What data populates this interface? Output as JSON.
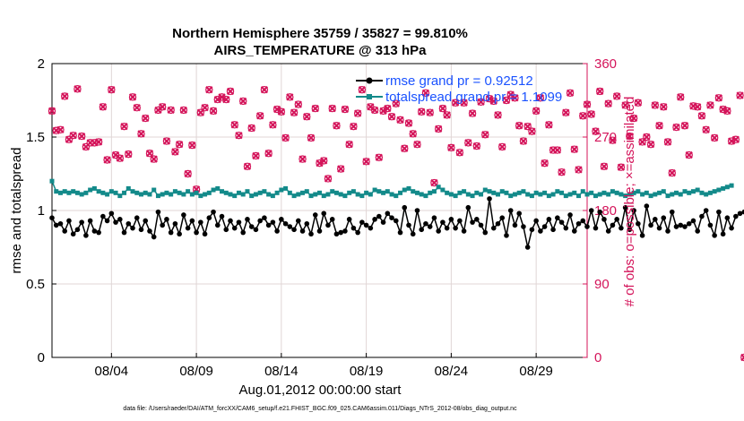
{
  "chart_data": {
    "type": "line",
    "title_line1": "Northern Hemisphere 35759 / 35827 = 99.810%",
    "title_line2": "AIRS_TEMPERATURE @ 313 hPa",
    "xlabel": "Aug.01,2012 00:00:00 start",
    "ylabel": "rmse and totalspread",
    "y2label": "# of obs: o=possible; ×=assimilated",
    "xlim": [
      0.5,
      32.0
    ],
    "ylim": [
      0,
      2
    ],
    "y2lim": [
      0,
      360
    ],
    "x_ticks": [
      4,
      9,
      14,
      19,
      24,
      29
    ],
    "x_tick_labels": [
      "08/04",
      "08/09",
      "08/14",
      "08/19",
      "08/24",
      "08/29"
    ],
    "y_ticks": [
      0,
      0.5,
      1,
      1.5,
      2
    ],
    "y_tick_labels": [
      "0",
      "0.5",
      "1",
      "1.5",
      "2"
    ],
    "y2_ticks": [
      0,
      90,
      180,
      270,
      360
    ],
    "y2_tick_labels": [
      "0",
      "90",
      "180",
      "270",
      "360"
    ],
    "grid": true,
    "legend_position": "top-right",
    "footnote": "data file: /Users/raeder/DAI/ATM_forcXX/CAM6_setup/f.e21.FHIST_BGC.f09_025.CAM6assim.011/Diags_NTrS_2012-08/obs_diag_output.nc",
    "colors": {
      "rmse": "#000000",
      "spread": "#138a8a",
      "obs": "#d4145a",
      "legend_text": "#1a52ff"
    },
    "x_start": 0.5,
    "x_step": 0.25,
    "series": [
      {
        "name": "rmse grand pr = 0.92512",
        "values": [
          0.95,
          0.9,
          0.91,
          0.86,
          0.93,
          0.84,
          0.87,
          0.92,
          0.83,
          0.93,
          0.86,
          0.85,
          0.96,
          0.93,
          0.98,
          0.92,
          0.94,
          0.85,
          0.91,
          0.88,
          0.95,
          0.87,
          0.93,
          0.86,
          0.82,
          0.99,
          0.9,
          0.94,
          0.85,
          0.91,
          0.84,
          0.97,
          0.88,
          0.93,
          0.85,
          0.92,
          0.84,
          0.95,
          0.99,
          0.9,
          0.96,
          0.87,
          0.93,
          0.88,
          0.92,
          0.85,
          0.94,
          0.89,
          0.87,
          0.93,
          0.95,
          0.9,
          0.92,
          0.86,
          0.94,
          0.91,
          0.89,
          0.87,
          0.93,
          0.86,
          0.91,
          0.84,
          0.97,
          0.86,
          0.98,
          0.9,
          0.94,
          0.84,
          0.85,
          0.86,
          0.94,
          0.88,
          0.85,
          0.92,
          0.9,
          0.88,
          0.94,
          0.96,
          0.92,
          0.98,
          0.95,
          0.93,
          0.85,
          1.02,
          0.9,
          0.84,
          1.0,
          0.87,
          0.91,
          0.89,
          0.95,
          0.86,
          0.92,
          0.88,
          0.94,
          0.88,
          0.93,
          0.86,
          1.02,
          0.92,
          0.94,
          0.9,
          0.85,
          1.08,
          0.88,
          0.91,
          0.95,
          0.83,
          1.0,
          0.9,
          0.98,
          0.89,
          0.75,
          0.87,
          0.93,
          0.86,
          0.89,
          0.94,
          0.87,
          0.95,
          0.92,
          0.88,
          0.97,
          0.86,
          0.91,
          0.93,
          0.89,
          1.0,
          0.88,
          0.99,
          0.94,
          0.86,
          0.9,
          0.94,
          0.88,
          1.02,
          0.87,
          1.0,
          0.91,
          0.83,
          1.03,
          0.9,
          0.94,
          0.88,
          0.95,
          0.86,
          0.99,
          0.89,
          0.9,
          0.89,
          0.91,
          0.93,
          0.86,
          0.96,
          1.0,
          0.9,
          0.83,
          0.99,
          0.84,
          0.95,
          0.88,
          0.96,
          0.98,
          0.99,
          1.0
        ]
      },
      {
        "name": "totalspread grand pr = 1.1099",
        "values": [
          1.2,
          1.13,
          1.12,
          1.13,
          1.12,
          1.13,
          1.12,
          1.11,
          1.12,
          1.14,
          1.15,
          1.13,
          1.12,
          1.11,
          1.13,
          1.12,
          1.1,
          1.12,
          1.15,
          1.13,
          1.12,
          1.11,
          1.12,
          1.11,
          1.14,
          1.1,
          1.11,
          1.12,
          1.11,
          1.13,
          1.12,
          1.11,
          1.13,
          1.11,
          1.12,
          1.1,
          1.11,
          1.12,
          1.14,
          1.15,
          1.13,
          1.12,
          1.11,
          1.1,
          1.12,
          1.11,
          1.13,
          1.1,
          1.11,
          1.12,
          1.13,
          1.11,
          1.1,
          1.12,
          1.14,
          1.15,
          1.12,
          1.1,
          1.11,
          1.12,
          1.13,
          1.1,
          1.11,
          1.12,
          1.1,
          1.11,
          1.13,
          1.12,
          1.11,
          1.1,
          1.12,
          1.13,
          1.11,
          1.1,
          1.12,
          1.11,
          1.14,
          1.13,
          1.12,
          1.13,
          1.11,
          1.1,
          1.12,
          1.14,
          1.15,
          1.13,
          1.12,
          1.11,
          1.1,
          1.12,
          1.13,
          1.16,
          1.14,
          1.12,
          1.11,
          1.1,
          1.12,
          1.13,
          1.11,
          1.1,
          1.12,
          1.11,
          1.14,
          1.13,
          1.12,
          1.11,
          1.13,
          1.12,
          1.1,
          1.11,
          1.12,
          1.13,
          1.11,
          1.1,
          1.12,
          1.11,
          1.12,
          1.1,
          1.11,
          1.13,
          1.12,
          1.1,
          1.11,
          1.12,
          1.1,
          1.13,
          1.11,
          1.12,
          1.1,
          1.11,
          1.12,
          1.11,
          1.13,
          1.12,
          1.11,
          1.1,
          1.11,
          1.12,
          1.13,
          1.11,
          1.12,
          1.1,
          1.11,
          1.12,
          1.13,
          1.1,
          1.11,
          1.12,
          1.11,
          1.13,
          1.12,
          1.13,
          1.14,
          1.12,
          1.11,
          1.12,
          1.13,
          1.14,
          1.15,
          1.16,
          1.17
        ]
      },
      {
        "name": "# of obs",
        "axis": "right",
        "values": [
          302,
          278,
          279,
          320,
          267,
          272,
          329,
          271,
          258,
          263,
          263,
          264,
          307,
          242,
          328,
          248,
          244,
          283,
          249,
          319,
          306,
          274,
          293,
          250,
          243,
          303,
          307,
          265,
          303,
          252,
          261,
          303,
          225,
          260,
          206,
          300,
          306,
          328,
          302,
          316,
          319,
          316,
          326,
          285,
          272,
          314,
          234,
          281,
          247,
          296,
          328,
          250,
          285,
          304,
          301,
          269,
          319,
          300,
          310,
          243,
          295,
          269,
          305,
          238,
          241,
          219,
          305,
          284,
          231,
          304,
          261,
          283,
          299,
          328,
          240,
          307,
          303,
          245,
          302,
          305,
          295,
          311,
          291,
          256,
          287,
          274,
          261,
          301,
          324,
          300,
          214,
          280,
          305,
          297,
          257,
          312,
          251,
          312,
          263,
          299,
          259,
          313,
          273,
          317,
          314,
          297,
          258,
          315,
          322,
          318,
          284,
          265,
          283,
          277,
          302,
          318,
          238,
          285,
          254,
          254,
          227,
          300,
          324,
          255,
          230,
          296,
          310,
          298,
          277,
          326,
          234,
          311,
          266,
          320,
          233,
          309,
          271,
          293,
          312,
          264,
          270,
          261,
          309,
          284,
          307,
          264,
          226,
          282,
          319,
          284,
          248,
          308,
          307,
          296,
          279,
          309,
          269,
          318,
          304,
          302,
          265,
          267,
          321,
          0
        ]
      }
    ]
  }
}
